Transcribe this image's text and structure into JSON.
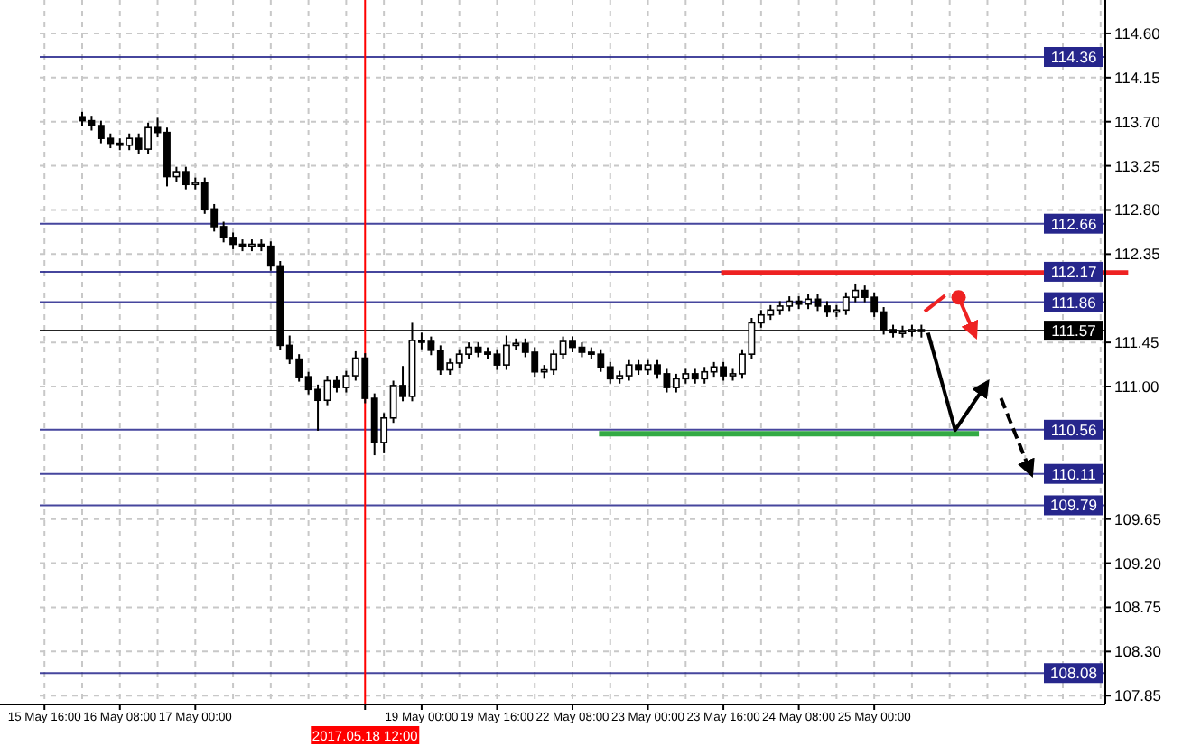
{
  "chart_data": {
    "type": "candlestick",
    "categories": [
      "15 May 16:00",
      null,
      null,
      null,
      null,
      null,
      null,
      null,
      "16 May 08:00",
      null,
      null,
      null,
      null,
      null,
      null,
      null,
      "17 May 00:00",
      null,
      null,
      null,
      null,
      null,
      null,
      null,
      null,
      null,
      null,
      null,
      null,
      null,
      null,
      null,
      null,
      null,
      "2017.05.18 12:00",
      null,
      null,
      null,
      null,
      null,
      "19 May 00:00",
      null,
      null,
      null,
      null,
      null,
      null,
      null,
      "19 May 16:00",
      null,
      null,
      null,
      null,
      null,
      null,
      null,
      "22 May 08:00",
      null,
      null,
      null,
      null,
      null,
      null,
      null,
      "23 May 00:00",
      null,
      null,
      null,
      null,
      null,
      null,
      null,
      "23 May 16:00",
      null,
      null,
      null,
      null,
      null,
      null,
      null,
      "24 May 08:00",
      null,
      null,
      null,
      null,
      null,
      null,
      null,
      "25 May 00:00",
      null,
      null,
      null,
      null,
      null,
      null,
      null,
      null,
      null,
      null,
      null,
      null,
      null,
      null,
      null,
      null,
      null,
      null,
      null,
      null,
      null,
      null,
      null,
      null
    ],
    "ohlc": [
      null,
      null,
      null,
      null,
      [
        113.75,
        113.8,
        113.66,
        113.71
      ],
      [
        113.71,
        113.76,
        113.61,
        113.66
      ],
      [
        113.66,
        113.71,
        113.48,
        113.53
      ],
      [
        113.53,
        113.58,
        113.43,
        113.48
      ],
      [
        113.48,
        113.53,
        113.41,
        113.46
      ],
      [
        113.46,
        113.58,
        113.41,
        113.53
      ],
      [
        113.53,
        113.58,
        113.37,
        113.42
      ],
      [
        113.42,
        113.69,
        113.37,
        113.64
      ],
      [
        113.64,
        113.74,
        113.54,
        113.59
      ],
      [
        113.59,
        113.64,
        113.04,
        113.14
      ],
      [
        113.14,
        113.24,
        113.09,
        113.19
      ],
      [
        113.19,
        113.24,
        113.01,
        113.06
      ],
      [
        113.06,
        113.13,
        113.01,
        113.08
      ],
      [
        113.08,
        113.13,
        112.76,
        112.81
      ],
      [
        112.81,
        112.86,
        112.58,
        112.63
      ],
      [
        112.63,
        112.68,
        112.47,
        112.52
      ],
      [
        112.52,
        112.57,
        112.4,
        112.45
      ],
      [
        112.45,
        112.5,
        112.38,
        112.43
      ],
      [
        112.43,
        112.5,
        112.38,
        112.45
      ],
      [
        112.45,
        112.5,
        112.38,
        112.43
      ],
      [
        112.43,
        112.48,
        112.18,
        112.23
      ],
      [
        112.23,
        112.28,
        111.37,
        111.42
      ],
      [
        111.42,
        111.52,
        111.23,
        111.28
      ],
      [
        111.28,
        111.33,
        111.05,
        111.1
      ],
      [
        111.1,
        111.15,
        110.92,
        110.97
      ],
      [
        110.97,
        111.02,
        110.55,
        110.86
      ],
      [
        110.86,
        111.11,
        110.81,
        111.06
      ],
      [
        111.06,
        111.11,
        110.94,
        110.99
      ],
      [
        110.99,
        111.16,
        110.94,
        111.11
      ],
      [
        111.11,
        111.36,
        111.06,
        111.29
      ],
      [
        111.29,
        111.34,
        110.83,
        110.88
      ],
      [
        110.88,
        110.93,
        110.3,
        110.43
      ],
      [
        110.43,
        110.73,
        110.32,
        110.68
      ],
      [
        110.68,
        111.06,
        110.63,
        111.01
      ],
      [
        111.01,
        111.21,
        110.85,
        110.9
      ],
      [
        110.9,
        111.65,
        110.85,
        111.47
      ],
      [
        111.47,
        111.55,
        111.38,
        111.46
      ],
      [
        111.46,
        111.51,
        111.32,
        111.37
      ],
      [
        111.37,
        111.42,
        111.12,
        111.17
      ],
      [
        111.17,
        111.29,
        111.12,
        111.24
      ],
      [
        111.24,
        111.38,
        111.19,
        111.33
      ],
      [
        111.33,
        111.45,
        111.28,
        111.4
      ],
      [
        111.4,
        111.45,
        111.3,
        111.35
      ],
      [
        111.35,
        111.4,
        111.28,
        111.33
      ],
      [
        111.33,
        111.38,
        111.17,
        111.22
      ],
      [
        111.22,
        111.52,
        111.17,
        111.42
      ],
      [
        111.42,
        111.49,
        111.37,
        111.44
      ],
      [
        111.44,
        111.49,
        111.3,
        111.35
      ],
      [
        111.35,
        111.4,
        111.1,
        111.15
      ],
      [
        111.15,
        111.22,
        111.08,
        111.17
      ],
      [
        111.17,
        111.38,
        111.12,
        111.33
      ],
      [
        111.33,
        111.51,
        111.28,
        111.46
      ],
      [
        111.46,
        111.51,
        111.35,
        111.4
      ],
      [
        111.4,
        111.45,
        111.3,
        111.35
      ],
      [
        111.35,
        111.4,
        111.28,
        111.33
      ],
      [
        111.33,
        111.38,
        111.15,
        111.2
      ],
      [
        111.2,
        111.25,
        111.03,
        111.08
      ],
      [
        111.08,
        111.16,
        111.03,
        111.11
      ],
      [
        111.11,
        111.27,
        111.06,
        111.22
      ],
      [
        111.22,
        111.27,
        111.12,
        111.17
      ],
      [
        111.17,
        111.27,
        111.12,
        111.22
      ],
      [
        111.22,
        111.27,
        111.08,
        111.13
      ],
      [
        111.13,
        111.18,
        110.94,
        110.99
      ],
      [
        110.99,
        111.13,
        110.94,
        111.08
      ],
      [
        111.08,
        111.18,
        111.03,
        111.13
      ],
      [
        111.13,
        111.18,
        111.03,
        111.08
      ],
      [
        111.08,
        111.2,
        111.03,
        111.15
      ],
      [
        111.15,
        111.25,
        111.1,
        111.2
      ],
      [
        111.2,
        111.25,
        111.06,
        111.11
      ],
      [
        111.11,
        111.18,
        111.06,
        111.13
      ],
      [
        111.13,
        111.38,
        111.08,
        111.33
      ],
      [
        111.33,
        111.7,
        111.28,
        111.65
      ],
      [
        111.65,
        111.78,
        111.6,
        111.73
      ],
      [
        111.73,
        111.83,
        111.68,
        111.78
      ],
      [
        111.78,
        111.87,
        111.73,
        111.82
      ],
      [
        111.82,
        111.92,
        111.77,
        111.87
      ],
      [
        111.87,
        111.92,
        111.79,
        111.84
      ],
      [
        111.84,
        111.94,
        111.79,
        111.89
      ],
      [
        111.89,
        111.94,
        111.77,
        111.82
      ],
      [
        111.82,
        111.87,
        111.71,
        111.76
      ],
      [
        111.76,
        111.83,
        111.71,
        111.78
      ],
      [
        111.78,
        111.96,
        111.73,
        111.91
      ],
      [
        111.91,
        112.05,
        111.86,
        111.98
      ],
      [
        111.98,
        112.03,
        111.86,
        111.91
      ],
      [
        111.91,
        111.96,
        111.71,
        111.76
      ],
      [
        111.76,
        111.81,
        111.53,
        111.58
      ],
      [
        111.58,
        111.63,
        111.5,
        111.55
      ],
      [
        111.55,
        111.62,
        111.5,
        111.56
      ],
      [
        111.56,
        111.63,
        111.51,
        111.58
      ],
      [
        111.58,
        111.63,
        111.5,
        111.57
      ],
      null,
      null,
      null,
      null,
      null,
      null,
      null,
      null,
      null,
      null,
      null,
      null,
      null,
      null,
      null,
      null,
      null,
      null,
      null
    ],
    "ylim": [
      107.76,
      114.94
    ],
    "yticks": [
      {
        "value": 114.6,
        "label": "114.60"
      },
      {
        "value": 114.15,
        "label": "114.15"
      },
      {
        "value": 113.7,
        "label": "113.70"
      },
      {
        "value": 113.25,
        "label": "113.25"
      },
      {
        "value": 112.8,
        "label": "112.80"
      },
      {
        "value": 112.35,
        "label": "112.35"
      },
      {
        "value": 111.45,
        "label": "111.45"
      },
      {
        "value": 111.0,
        "label": "111.00"
      },
      {
        "value": 109.65,
        "label": "109.65"
      },
      {
        "value": 109.2,
        "label": "109.20"
      },
      {
        "value": 108.75,
        "label": "108.75"
      },
      {
        "value": 108.3,
        "label": "108.30"
      },
      {
        "value": 107.85,
        "label": "107.85"
      }
    ],
    "grid": true,
    "ref_lines": [
      {
        "axis": "y",
        "value": 114.36,
        "label": "114.36",
        "color": "#26268c"
      },
      {
        "axis": "y",
        "value": 112.66,
        "label": "112.66",
        "color": "#26268c"
      },
      {
        "axis": "y",
        "value": 112.17,
        "label": "112.17",
        "color": "#26268c"
      },
      {
        "axis": "y",
        "value": 111.86,
        "label": "111.86",
        "color": "#26268c"
      },
      {
        "axis": "y",
        "value": 111.57,
        "label": "111.57",
        "color": "#000000"
      },
      {
        "axis": "y",
        "value": 110.56,
        "label": "110.56",
        "color": "#26268c"
      },
      {
        "axis": "y",
        "value": 110.11,
        "label": "110.11",
        "color": "#26268c"
      },
      {
        "axis": "y",
        "value": 109.79,
        "label": "109.79",
        "color": "#26268c"
      },
      {
        "axis": "y",
        "value": 108.08,
        "label": "108.08",
        "color": "#26268c"
      },
      {
        "axis": "x",
        "value": "2017.05.18 12:00",
        "color": "#ff0000"
      }
    ]
  }
}
